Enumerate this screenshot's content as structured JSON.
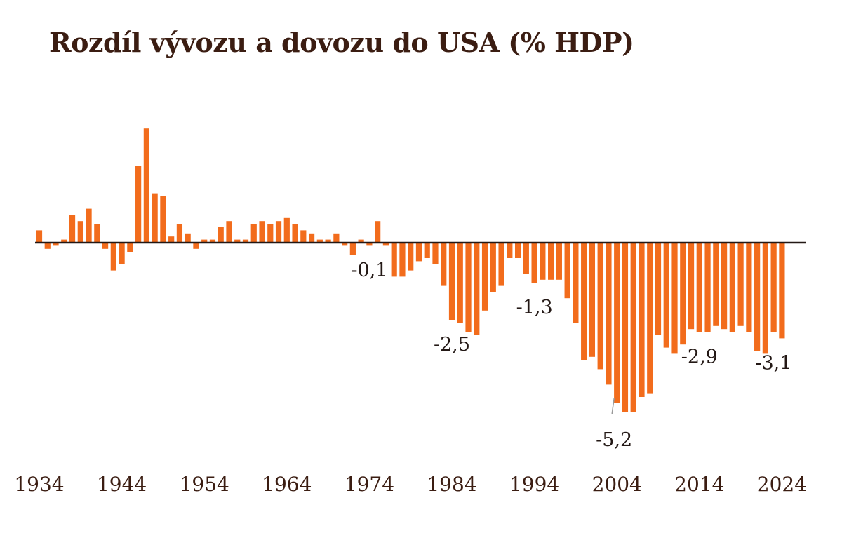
{
  "chart_data": {
    "type": "bar",
    "title": "Rozdíl vývozu a dovozu do USA (% HDP)",
    "xlabel": "",
    "ylabel": "",
    "x_ticks": [
      "1934",
      "1944",
      "1954",
      "1964",
      "1974",
      "1984",
      "1994",
      "2004",
      "2014",
      "2024"
    ],
    "years": [
      1934,
      1935,
      1936,
      1937,
      1938,
      1939,
      1940,
      1941,
      1942,
      1943,
      1944,
      1945,
      1946,
      1947,
      1948,
      1949,
      1950,
      1951,
      1952,
      1953,
      1954,
      1955,
      1956,
      1957,
      1958,
      1959,
      1960,
      1961,
      1962,
      1963,
      1964,
      1965,
      1966,
      1967,
      1968,
      1969,
      1970,
      1971,
      1972,
      1973,
      1974,
      1975,
      1976,
      1977,
      1978,
      1979,
      1980,
      1981,
      1982,
      1983,
      1984,
      1985,
      1986,
      1987,
      1988,
      1989,
      1990,
      1991,
      1992,
      1993,
      1994,
      1995,
      1996,
      1997,
      1998,
      1999,
      2000,
      2001,
      2002,
      2003,
      2004,
      2005,
      2006,
      2007,
      2008,
      2009,
      2010,
      2011,
      2012,
      2013,
      2014,
      2015,
      2016,
      2017,
      2018,
      2019,
      2020,
      2021,
      2022,
      2023,
      2024
    ],
    "values": [
      0.4,
      -0.2,
      -0.1,
      0.1,
      0.9,
      0.7,
      1.1,
      0.6,
      -0.2,
      -0.9,
      -0.7,
      -0.3,
      2.5,
      3.7,
      1.6,
      1.5,
      0.2,
      0.6,
      0.3,
      -0.2,
      0.1,
      0.1,
      0.5,
      0.7,
      0.1,
      0.1,
      0.6,
      0.7,
      0.6,
      0.7,
      0.8,
      0.6,
      0.4,
      0.3,
      0.1,
      0.1,
      0.3,
      -0.1,
      -0.4,
      0.1,
      -0.1,
      0.7,
      -0.1,
      -1.1,
      -1.1,
      -0.9,
      -0.6,
      -0.5,
      -0.7,
      -1.4,
      -2.5,
      -2.6,
      -2.9,
      -3.0,
      -2.2,
      -1.6,
      -1.4,
      -0.5,
      -0.5,
      -1.0,
      -1.3,
      -1.2,
      -1.2,
      -1.2,
      -1.8,
      -2.6,
      -3.8,
      -3.7,
      -4.1,
      -4.6,
      -5.2,
      -5.5,
      -5.5,
      -5.0,
      -4.9,
      -3.0,
      -3.4,
      -3.6,
      -3.3,
      -2.8,
      -2.9,
      -2.9,
      -2.7,
      -2.8,
      -2.9,
      -2.7,
      -2.9,
      -3.5,
      -3.6,
      -2.9,
      -3.1
    ],
    "ylim": [
      -6.5,
      4.8
    ],
    "annotations": [
      {
        "label": "-0,1",
        "year": 1974
      },
      {
        "label": "-2,5",
        "year": 1984
      },
      {
        "label": "-1,3",
        "year": 1994
      },
      {
        "label": "-5,2",
        "year": 2004
      },
      {
        "label": "-2,9",
        "year": 2014
      },
      {
        "label": "-3,1",
        "year": 2024
      }
    ],
    "colors": {
      "bar": "#f26c1c",
      "baseline": "#231815",
      "text": "#3b1d12"
    },
    "grid": false,
    "legend": "none"
  }
}
